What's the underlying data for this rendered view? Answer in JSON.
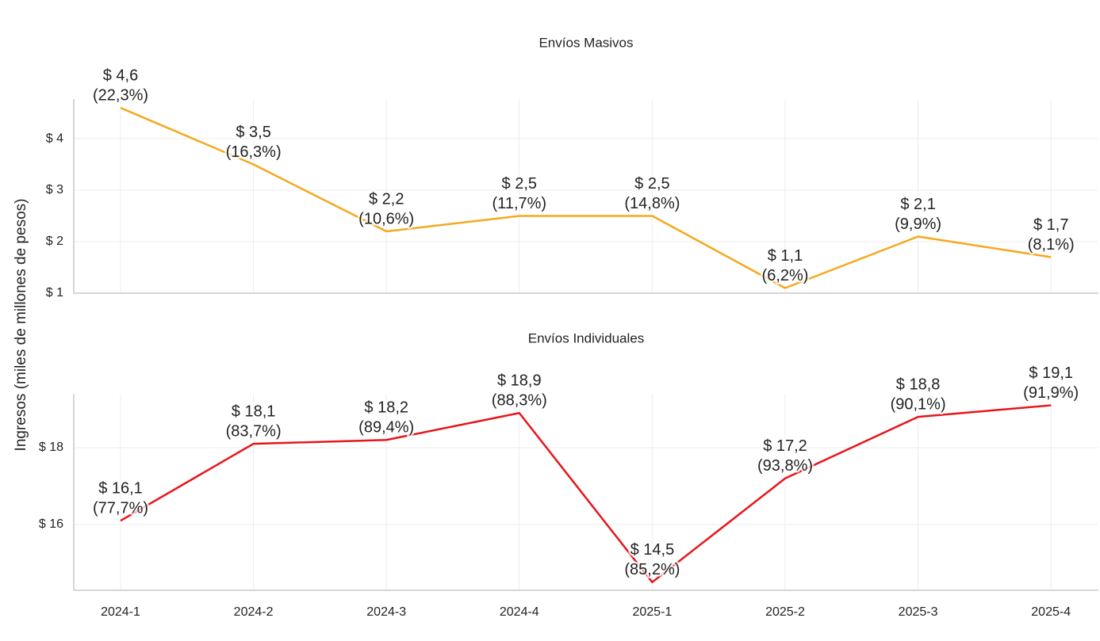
{
  "ylabel": "Ingresos (miles de millones de pesos)",
  "chart_data": [
    {
      "type": "line",
      "title": "Envíos Masivos",
      "categories": [
        "2024-1",
        "2024-2",
        "2024-3",
        "2024-4",
        "2025-1",
        "2025-2",
        "2025-3",
        "2025-4"
      ],
      "values": [
        4.6,
        3.5,
        2.2,
        2.5,
        2.5,
        1.1,
        2.1,
        1.7
      ],
      "value_labels": [
        [
          "$ 4,6",
          "(22,3%)"
        ],
        [
          "$ 3,5",
          "(16,3%)"
        ],
        [
          "$ 2,2",
          "(10,6%)"
        ],
        [
          "$ 2,5",
          "(11,7%)"
        ],
        [
          "$ 2,5",
          "(14,8%)"
        ],
        [
          "$ 1,1",
          "(6,2%)"
        ],
        [
          "$ 2,1",
          "(9,9%)"
        ],
        [
          "$ 1,7",
          "(8,1%)"
        ]
      ],
      "color": "#f5a91c",
      "ylim": [
        1,
        4.77
      ],
      "yticks": [
        {
          "value": 1,
          "label": "$ 1"
        },
        {
          "value": 2,
          "label": "$ 2"
        },
        {
          "value": 3,
          "label": "$ 3"
        },
        {
          "value": 4,
          "label": "$ 4"
        }
      ],
      "grid": true
    },
    {
      "type": "line",
      "title": "Envíos Individuales",
      "categories": [
        "2024-1",
        "2024-2",
        "2024-3",
        "2024-4",
        "2025-1",
        "2025-2",
        "2025-3",
        "2025-4"
      ],
      "values": [
        16.1,
        18.1,
        18.2,
        18.9,
        14.5,
        17.2,
        18.8,
        19.1
      ],
      "value_labels": [
        [
          "$ 16,1",
          "(77,7%)"
        ],
        [
          "$ 18,1",
          "(83,7%)"
        ],
        [
          "$ 18,2",
          "(89,4%)"
        ],
        [
          "$ 18,9",
          "(88,3%)"
        ],
        [
          "$ 14,5",
          "(85,2%)"
        ],
        [
          "$ 17,2",
          "(93,8%)"
        ],
        [
          "$ 18,8",
          "(90,1%)"
        ],
        [
          "$ 19,1",
          "(91,9%)"
        ]
      ],
      "color": "#e8141b",
      "ylim": [
        14.29,
        19.4
      ],
      "yticks": [
        {
          "value": 16,
          "label": "$ 16"
        },
        {
          "value": 18,
          "label": "$ 18"
        }
      ],
      "grid": true
    }
  ]
}
